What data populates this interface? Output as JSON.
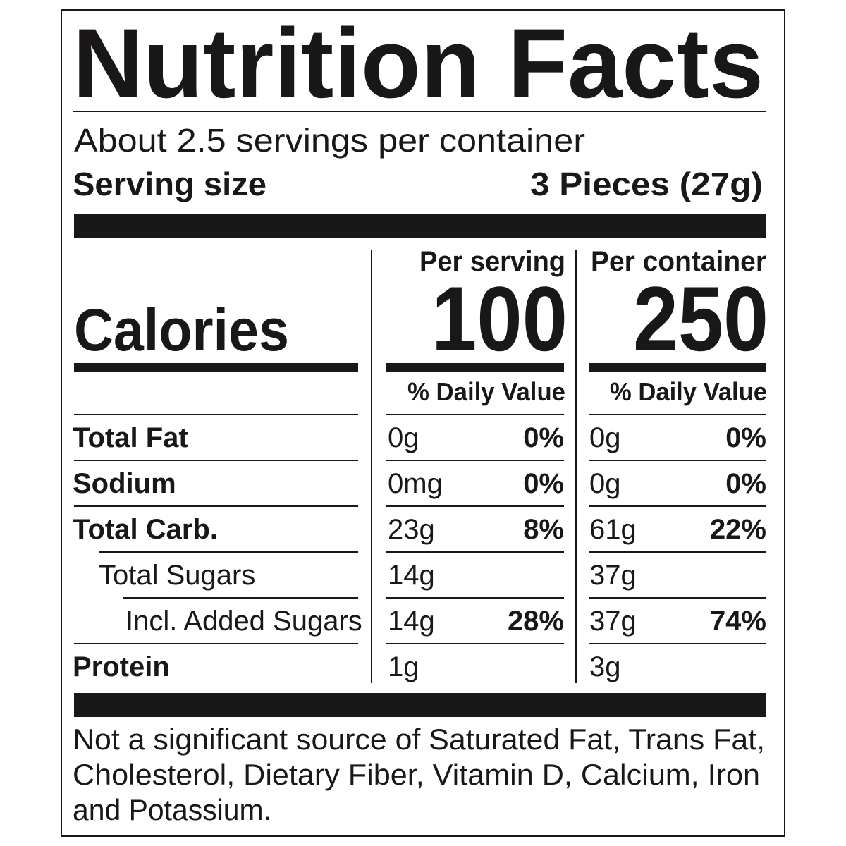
{
  "title": "Nutrition Facts",
  "servings": "About 2.5 servings per container",
  "serving_size": {
    "label": "Serving size",
    "value": "3 Pieces (27g)"
  },
  "calories": {
    "label": "Calories",
    "columns": [
      {
        "header": "Per serving",
        "value": "100"
      },
      {
        "header": "Per container",
        "value": "250"
      }
    ]
  },
  "daily_value_header": [
    "% Daily Value",
    "% Daily Value"
  ],
  "nutrients": [
    {
      "name": "Total Fat",
      "serving": {
        "amount": "0g",
        "dv": "0%"
      },
      "container": {
        "amount": "0g",
        "dv": "0%"
      }
    },
    {
      "name": "Sodium",
      "serving": {
        "amount": "0mg",
        "dv": "0%"
      },
      "container": {
        "amount": "0g",
        "dv": "0%"
      }
    },
    {
      "name": "Total Carb.",
      "serving": {
        "amount": "23g",
        "dv": "8%"
      },
      "container": {
        "amount": "61g",
        "dv": "22%"
      }
    },
    {
      "name": "Total Sugars",
      "serving": {
        "amount": "14g"
      },
      "container": {
        "amount": "37g"
      }
    },
    {
      "name": "Incl. Added Sugars",
      "serving": {
        "amount": "14g",
        "dv": "28%"
      },
      "container": {
        "amount": "37g",
        "dv": "74%"
      }
    },
    {
      "name": "Protein",
      "serving": {
        "amount": "1g"
      },
      "container": {
        "amount": "3g"
      }
    }
  ],
  "footnote": [
    "Not a significant source of Saturated Fat, Trans Fat,",
    "Cholesterol, Dietary Fiber, Vitamin D, Calcium, Iron",
    "and Potassium."
  ]
}
